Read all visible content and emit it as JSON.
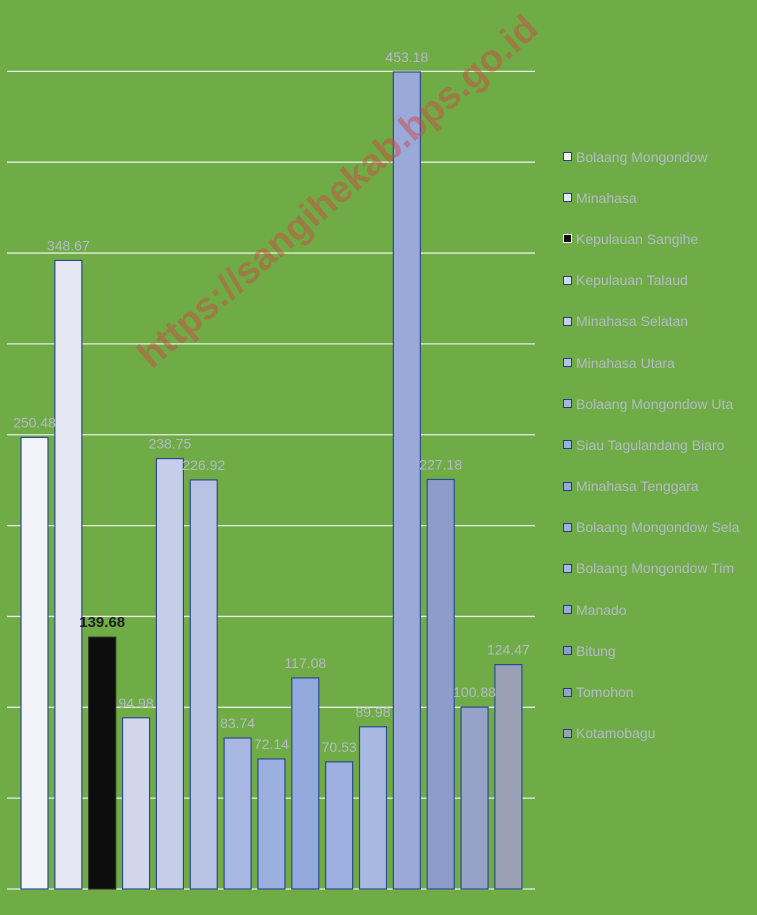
{
  "chart_data": {
    "type": "bar",
    "categories": [
      "Bolaang Mongondow",
      "Minahasa",
      "Kepulauan Sangihe",
      "Kepulauan Talaud",
      "Minahasa Selatan",
      "Minahasa Utara",
      "Bolaang Mongondow Utara",
      "Siau Tagulandang Biaro",
      "Minahasa Tenggara",
      "Bolaang Mongondow Selatan",
      "Bolaang Mongondow Timur",
      "Manado",
      "Bitung",
      "Tomohon",
      "Kotamobagu"
    ],
    "values": [
      250.48,
      348.67,
      139.68,
      94.98,
      238.75,
      226.92,
      83.74,
      72.14,
      117.08,
      70.53,
      89.98,
      453.18,
      227.18,
      100.88,
      124.47
    ],
    "value_labels": [
      "250.48",
      "348.67",
      "139.68",
      "94.98",
      "238.75",
      "226.92",
      "83.74",
      "72.14",
      "117.08",
      "70.53",
      "89.98",
      "453.18",
      "227.18",
      "100.88",
      "124.47"
    ],
    "legend_labels": [
      "Bolaang Mongondow",
      "Minahasa",
      "Kepulauan Sangihe",
      "Kepulauan Talaud",
      "Minahasa Selatan",
      "Minahasa Utara",
      "Bolaang Mongondow Uta",
      "Siau Tagulandang Biaro",
      "Minahasa Tenggara",
      "Bolaang Mongondow Sela",
      "Bolaang Mongondow Tim",
      "Manado",
      "Bitung",
      "Tomohon",
      "Kotamobagu"
    ],
    "colors": [
      "#f2f3f9",
      "#e4e7f2",
      "#0d0d0d",
      "#d0d6eb",
      "#c5cde8",
      "#b8c3e4",
      "#a8b8e2",
      "#9cb0e0",
      "#93a9dd",
      "#9db0df",
      "#a9b8e0",
      "#9aaad8",
      "#8e9ccc",
      "#96a2c8",
      "#9aa0b6"
    ],
    "highlight_index": 2,
    "ylim": [
      0,
      500
    ],
    "gridlines": [
      0,
      50,
      100,
      150,
      200,
      250,
      300,
      350,
      400,
      450
    ],
    "grid": true,
    "legend_position": "right",
    "title": "",
    "xlabel": "",
    "ylabel": ""
  },
  "watermark": "https://sangihekab.bps.go.id"
}
